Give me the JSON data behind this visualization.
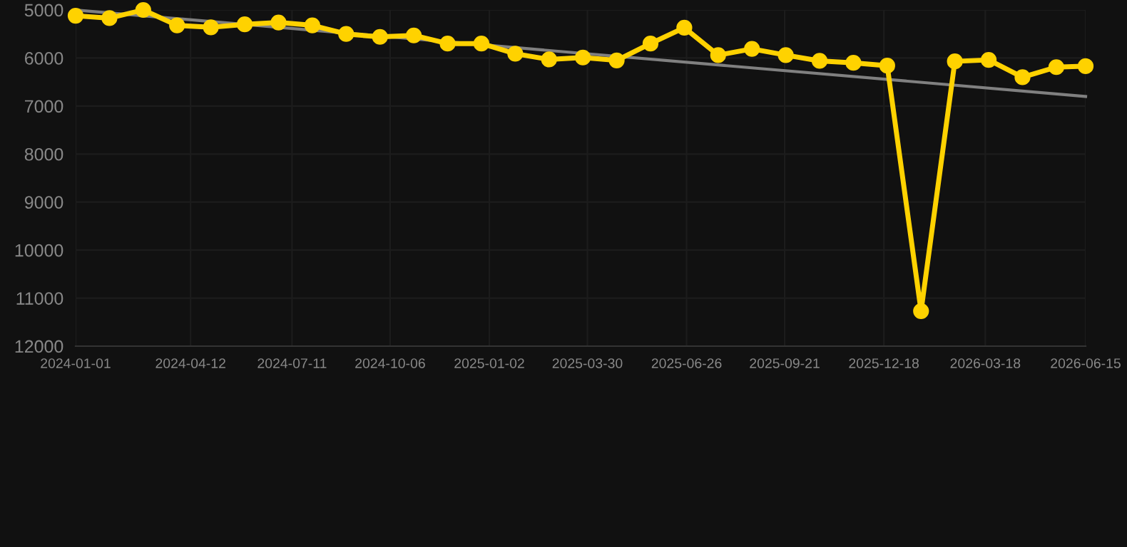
{
  "chart_data": {
    "type": "line",
    "x": [
      "2024-01-01",
      "2024-01-31",
      "2024-03-01",
      "2024-03-31",
      "2024-04-30",
      "2024-05-30",
      "2024-06-29",
      "2024-07-29",
      "2024-08-28",
      "2024-09-27",
      "2024-10-27",
      "2024-11-26",
      "2024-12-26",
      "2025-01-25",
      "2025-02-24",
      "2025-03-26",
      "2025-04-25",
      "2025-05-25",
      "2025-06-24",
      "2025-07-24",
      "2025-08-23",
      "2025-09-22",
      "2025-10-22",
      "2025-11-21",
      "2025-12-21",
      "2026-01-20",
      "2026-02-19",
      "2026-03-21",
      "2026-04-20",
      "2026-05-20",
      "2026-06-15"
    ],
    "series": [
      {
        "color": "#808080",
        "marker": "none",
        "x": [
          "2024-01-01",
          "2026-06-15"
        ],
        "values": [
          5000,
          6800
        ]
      },
      {
        "color": "#ffd200",
        "marker": "circle",
        "values": [
          5120,
          5170,
          5000,
          5320,
          5360,
          5300,
          5260,
          5320,
          5500,
          5560,
          5530,
          5700,
          5700,
          5910,
          6030,
          5990,
          6050,
          5700,
          5370,
          5940,
          5810,
          5940,
          6060,
          6100,
          6160,
          11270,
          6070,
          6040,
          6400,
          6190,
          6170
        ]
      }
    ],
    "ylim": [
      12000,
      5000
    ],
    "yticks": [
      5000,
      6000,
      7000,
      8000,
      9000,
      10000,
      11000,
      12000
    ],
    "xlim": [
      "2024-01-01",
      "2026-06-15"
    ],
    "xticks": [
      {
        "value": "2024-01-01",
        "label": "2024-01-01"
      },
      {
        "value": "2024-04-12",
        "label": "2024-04-12"
      },
      {
        "value": "2024-07-11",
        "label": "2024-07-11"
      },
      {
        "value": "2024-10-06",
        "label": "2024-10-06"
      },
      {
        "value": "2025-01-02",
        "label": "2025-01-02"
      },
      {
        "value": "2025-03-30",
        "label": "2025-03-30"
      },
      {
        "value": "2025-06-26",
        "label": "2025-06-26"
      },
      {
        "value": "2025-09-21",
        "label": "2025-09-21"
      },
      {
        "value": "2025-12-18",
        "label": "2025-12-18"
      },
      {
        "value": "2026-03-18",
        "label": "2026-03-18"
      },
      {
        "value": "2026-06-15",
        "label": "2026-06-15"
      }
    ],
    "grid": true,
    "line_style": "solid"
  }
}
